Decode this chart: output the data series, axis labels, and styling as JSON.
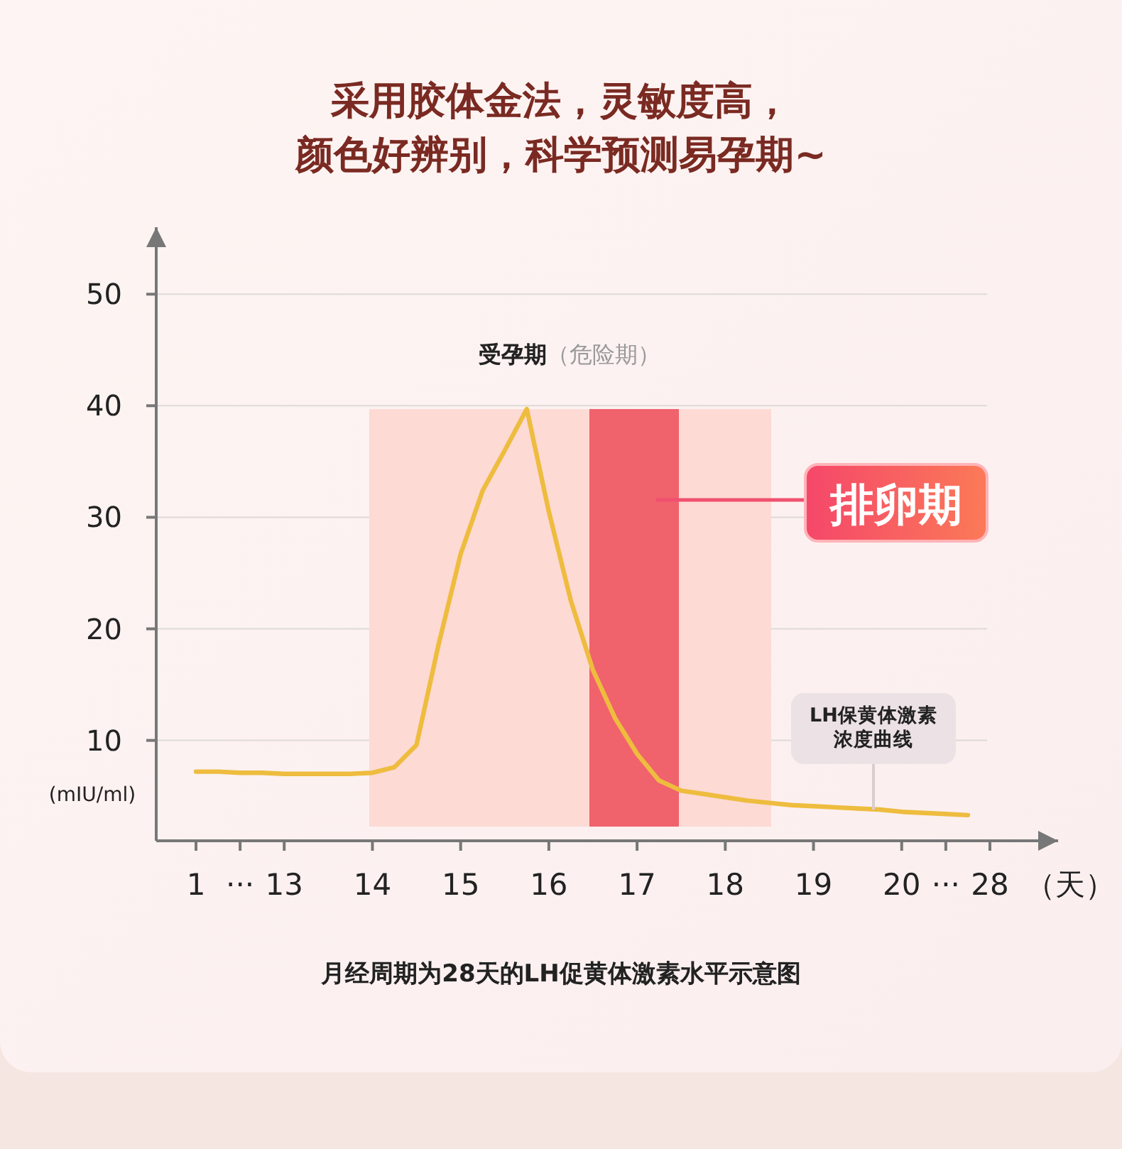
{
  "chart_data": {
    "type": "line",
    "title": "采用胶体金法，灵敏度高，",
    "subtitle": "颜色好辨别，科学预测易孕期~",
    "xlabel": "（天）",
    "ylabel": "(mIU/ml)",
    "categories": [
      "1",
      null,
      "···",
      null,
      "13",
      null,
      null,
      null,
      "14",
      null,
      null,
      null,
      "15",
      null,
      null,
      null,
      "16",
      null,
      null,
      null,
      "17",
      null,
      null,
      null,
      "18",
      null,
      null,
      null,
      "19",
      null,
      null,
      null,
      "20",
      null,
      "···",
      null,
      "28"
    ],
    "ylim": [
      1,
      56
    ],
    "yticks": [
      10,
      20,
      30,
      40,
      50
    ],
    "grid": "y",
    "series": [
      {
        "color": "#eebc3e",
        "values": [
          7.2,
          7.2,
          7.1,
          7.1,
          7.0,
          7.0,
          7.0,
          7.0,
          7.1,
          7.6,
          9.6,
          18.6,
          26.7,
          32.4,
          36.0,
          39.7,
          30.5,
          22.5,
          16.3,
          12.0,
          8.8,
          6.4,
          5.5,
          5.2,
          4.9,
          4.6,
          4.4,
          4.2,
          4.1,
          4.0,
          3.9,
          3.8,
          3.6,
          3.5,
          3.4,
          3.3,
          null
        ]
      }
    ],
    "annotations": [
      {
        "text": "LH保黄体激素浓度曲线",
        "y": 3.8
      },
      "**受孕期**（危险期）",
      "排卵期",
      "月经周期为28天的LH促黄体激素水平示意图"
    ]
  }
}
